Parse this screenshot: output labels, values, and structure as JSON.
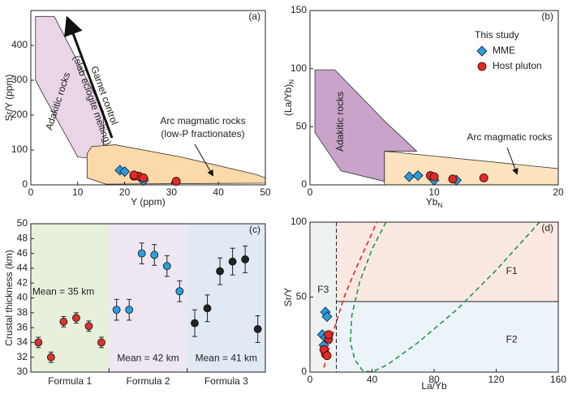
{
  "chart_data": [
    {
      "type": "scatter",
      "panel_label": "(a)",
      "x_label": {
        "text": "Y (ppm)"
      },
      "y_label": {
        "text": "Sr/Y (ppm)"
      },
      "xlim": [
        0,
        50
      ],
      "ylim": [
        0,
        500
      ],
      "xticks": [
        0,
        10,
        20,
        30,
        40,
        50
      ],
      "yticks": [
        0,
        100,
        200,
        300,
        400
      ],
      "regions": [
        {
          "label": [
            "Adakitic rocks"
          ],
          "color": "#e9d5e6",
          "points": [
            [
              1,
              483
            ],
            [
              5,
              483
            ],
            [
              15.5,
              210
            ],
            [
              15.5,
              95
            ],
            [
              13.5,
              75
            ],
            [
              10,
              80
            ],
            [
              3,
              250
            ],
            [
              1,
              300
            ]
          ]
        },
        {
          "label": [
            "Arc magmatic rocks",
            "(low-P fractionates)"
          ],
          "color": "#fbd9a8",
          "points": [
            [
              13,
              110
            ],
            [
              18,
              115
            ],
            [
              32,
              80
            ],
            [
              48,
              30
            ],
            [
              50,
              20
            ],
            [
              50,
              5
            ],
            [
              16,
              2
            ],
            [
              12,
              20
            ],
            [
              12,
              90
            ]
          ]
        }
      ],
      "annotation": [
        "Garnet control",
        "(slab eclogite melting)"
      ],
      "series": [
        {
          "marker": "diamond",
          "color": "#2a9bd6",
          "x": [
            19,
            20,
            24,
            24
          ],
          "y": [
            42,
            38,
            18,
            12
          ]
        },
        {
          "marker": "circle",
          "color": "#e02a2a",
          "x": [
            22,
            23,
            24,
            31,
            22
          ],
          "y": [
            25,
            25,
            20,
            10,
            28
          ]
        }
      ]
    },
    {
      "type": "scatter",
      "panel_label": "(b)",
      "x_label": {
        "text": "Yb",
        "sub": "N"
      },
      "y_label": {
        "text": "(La/Yb)",
        "sub": "N"
      },
      "xlim": [
        0,
        20
      ],
      "ylim": [
        0,
        150
      ],
      "xticks": [
        0,
        10,
        20
      ],
      "yticks": [
        0,
        50,
        100,
        150
      ],
      "regions": [
        {
          "label": [
            "Adakitic rocks"
          ],
          "color": "#c9a3c9",
          "points": [
            [
              0.4,
              99
            ],
            [
              2,
              99
            ],
            [
              6,
              55
            ],
            [
              8.6,
              29
            ],
            [
              6,
              29
            ],
            [
              6,
              3
            ],
            [
              2.5,
              12
            ],
            [
              0.4,
              45
            ]
          ]
        },
        {
          "label": [
            "Arc magmatic rocks"
          ],
          "color": "#fbd9a8",
          "points": [
            [
              6,
              29
            ],
            [
              20,
              14
            ],
            [
              20,
              0
            ],
            [
              6,
              0
            ]
          ]
        }
      ],
      "legend_title": "This study",
      "series": [
        {
          "name": "MME",
          "marker": "diamond",
          "color": "#2a9bd6",
          "x": [
            8,
            8.7,
            10,
            11.8
          ],
          "y": [
            7,
            8,
            4,
            4
          ]
        },
        {
          "name": "Host pluton",
          "marker": "circle",
          "color": "#e02a2a",
          "x": [
            9.7,
            10,
            11.5,
            14
          ],
          "y": [
            8,
            7,
            5,
            6
          ]
        }
      ]
    },
    {
      "type": "errorbar",
      "panel_label": "(c)",
      "y_label": {
        "text": "Crustal thickness (km)"
      },
      "ylim": [
        30,
        50
      ],
      "yticks": [
        30,
        32,
        34,
        36,
        38,
        40,
        42,
        44,
        46,
        48,
        50
      ],
      "groups": [
        {
          "label": "Formula 1",
          "mean_label": "Mean = 35 km",
          "color": "#d9342b",
          "band": "#e7f0dd",
          "values": [
            34,
            32,
            36.8,
            37.3,
            36.2,
            34
          ],
          "errors": [
            0.7,
            0.7,
            0.7,
            0.7,
            0.7,
            0.7
          ]
        },
        {
          "label": "Formula 2",
          "mean_label": "Mean = 42 km",
          "color": "#2aa0dc",
          "band": "#eee7f2",
          "values": [
            38.4,
            38.4,
            46,
            45.8,
            44.3,
            40.9
          ],
          "errors": [
            1.4,
            1.4,
            1.4,
            1.4,
            1.4,
            1.4
          ]
        },
        {
          "label": "Formula 3",
          "mean_label": "Mean = 41 km",
          "color": "#222222",
          "band": "#e0e9f4",
          "values": [
            36.6,
            38.6,
            43.6,
            44.9,
            45.2,
            35.8
          ],
          "errors": [
            1.8,
            1.8,
            1.8,
            1.8,
            1.8,
            1.8
          ]
        }
      ]
    },
    {
      "type": "scatter",
      "panel_label": "(d)",
      "x_label": {
        "text": "La/Yb"
      },
      "y_label": {
        "text": "Sr/Y"
      },
      "xlim": [
        0,
        160
      ],
      "ylim": [
        0,
        100
      ],
      "xticks": [
        0,
        40,
        80,
        120,
        160
      ],
      "yticks": [
        0,
        50,
        100
      ],
      "boundary_x": 17,
      "boundary_y": 47,
      "fields": [
        {
          "label": "F1",
          "color": "#fbe8e2"
        },
        {
          "label": "F2",
          "color": "#edf4f9"
        },
        {
          "label": "F3",
          "color": "#eef2f1"
        }
      ],
      "curves": [
        {
          "color": "#e02a2a",
          "points": [
            [
              9,
              3
            ],
            [
              12,
              15
            ],
            [
              16,
              30
            ],
            [
              22,
              50
            ],
            [
              30,
              70
            ],
            [
              38,
              88
            ],
            [
              43,
              100
            ]
          ]
        },
        {
          "color": "#1f9a4a",
          "points": [
            [
              49,
              100
            ],
            [
              40,
              82
            ],
            [
              32,
              60
            ],
            [
              27,
              38
            ],
            [
              26,
              20
            ],
            [
              29,
              8
            ],
            [
              34,
              1
            ],
            [
              40,
              0
            ],
            [
              50,
              5
            ],
            [
              70,
              20
            ],
            [
              95,
              42
            ],
            [
              120,
              68
            ],
            [
              148,
              100
            ]
          ]
        }
      ],
      "series": [
        {
          "marker": "diamond",
          "color": "#2a9bd6",
          "x": [
            10,
            11,
            8,
            9,
            10
          ],
          "y": [
            40,
            37,
            25,
            18,
            23
          ]
        },
        {
          "marker": "circle",
          "color": "#e02a2a",
          "x": [
            10,
            9,
            12,
            11,
            12
          ],
          "y": [
            12,
            15,
            22,
            11,
            25
          ]
        }
      ]
    }
  ]
}
